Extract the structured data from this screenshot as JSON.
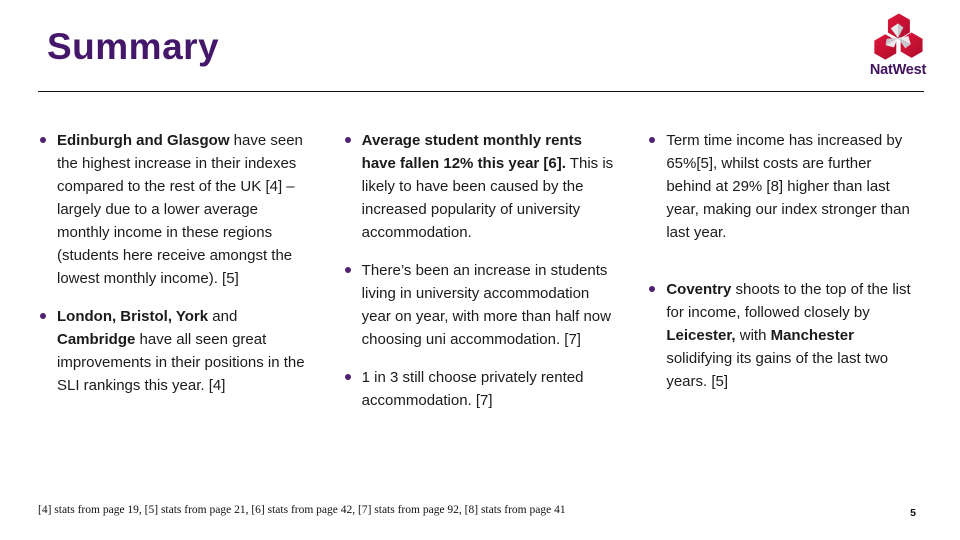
{
  "slide": {
    "title": "Summary",
    "page_number": "5",
    "footer": "[4] stats from page 19, [5] stats from page 21, [6] stats from page 42, [7] stats from page 92, [8] stats from page 41"
  },
  "logo": {
    "brand": "NatWest",
    "cube_red": "#d6173a",
    "cube_red_dark": "#a50d28",
    "text_purple": "#42145f"
  },
  "columns": [
    {
      "bullets": [
        {
          "spaced": false,
          "segments": [
            {
              "bold": true,
              "text": "Edinburgh and Glasgow"
            },
            {
              "bold": false,
              "text": " have seen the highest increase in their indexes compared to the rest of the UK [4] – largely due to a lower average monthly income in these regions (students here receive amongst the lowest monthly income). [5]"
            }
          ]
        },
        {
          "spaced": false,
          "segments": [
            {
              "bold": true,
              "text": "London, Bristol, York"
            },
            {
              "bold": false,
              "text": " and "
            },
            {
              "bold": true,
              "text": "Cambridge"
            },
            {
              "bold": false,
              "text": " have all seen great improvements in their positions in the SLI rankings this year. [4]"
            }
          ]
        }
      ]
    },
    {
      "bullets": [
        {
          "spaced": false,
          "segments": [
            {
              "bold": true,
              "text": "Average student monthly rents have fallen 12% this year [6]."
            },
            {
              "bold": false,
              "text": " This is likely to have been caused by the increased popularity of university accommodation."
            }
          ]
        },
        {
          "spaced": false,
          "segments": [
            {
              "bold": false,
              "text": "There’s been an increase in students living in university accommodation year on year, with more than half now choosing uni accommodation. [7]"
            }
          ]
        },
        {
          "spaced": false,
          "segments": [
            {
              "bold": false,
              "text": "1 in 3 still choose privately rented accommodation. [7]"
            }
          ]
        }
      ]
    },
    {
      "bullets": [
        {
          "spaced": false,
          "segments": [
            {
              "bold": false,
              "text": "Term time income has increased by 65%[5], whilst costs are further behind at 29% [8] higher than last year, making our index stronger than last year."
            }
          ]
        },
        {
          "spaced": true,
          "segments": [
            {
              "bold": true,
              "text": "Coventry"
            },
            {
              "bold": false,
              "text": " shoots to the top of the list for income, followed closely by "
            },
            {
              "bold": true,
              "text": "Leicester,"
            },
            {
              "bold": false,
              "text": " with "
            },
            {
              "bold": true,
              "text": "Manchester"
            },
            {
              "bold": false,
              "text": " solidifying its gains of the last two years. [5]"
            }
          ]
        }
      ]
    }
  ]
}
